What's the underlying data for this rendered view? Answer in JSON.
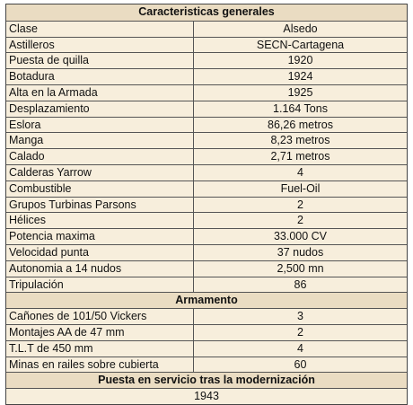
{
  "general": {
    "title": "Caracteristicas generales",
    "rows": [
      {
        "label": "Clase",
        "value": "Alsedo"
      },
      {
        "label": "Astilleros",
        "value": "SECN-Cartagena"
      },
      {
        "label": "Puesta de quilla",
        "value": "1920"
      },
      {
        "label": "Botadura",
        "value": "1924"
      },
      {
        "label": "Alta en la Armada",
        "value": "1925"
      },
      {
        "label": "Desplazamiento",
        "value": "1.164 Tons"
      },
      {
        "label": "Eslora",
        "value": "86,26 metros"
      },
      {
        "label": "Manga",
        "value": "8,23 metros"
      },
      {
        "label": "Calado",
        "value": "2,71 metros"
      },
      {
        "label": "Calderas Yarrow",
        "value": "4"
      },
      {
        "label": "Combustible",
        "value": "Fuel-Oil"
      },
      {
        "label": "Grupos Turbinas Parsons",
        "value": "2"
      },
      {
        "label": "Hélices",
        "value": "2"
      },
      {
        "label": "Potencia maxima",
        "value": "33.000 CV"
      },
      {
        "label": "Velocidad punta",
        "value": "37 nudos"
      },
      {
        "label": "Autonomia a 14 nudos",
        "value": "2,500 mn"
      },
      {
        "label": "Tripulación",
        "value": "86"
      }
    ]
  },
  "armament": {
    "title": "Armamento",
    "rows": [
      {
        "label": "Cañones de 101/50 Vickers",
        "value": "3"
      },
      {
        "label": "Montajes AA de 47 mm",
        "value": "2"
      },
      {
        "label": "T.L.T de 450 mm",
        "value": "4"
      },
      {
        "label": "Minas en railes sobre cubierta",
        "value": "60"
      }
    ]
  },
  "modernization": {
    "title": "Puesta en servicio tras la modernización",
    "value": "1943"
  }
}
